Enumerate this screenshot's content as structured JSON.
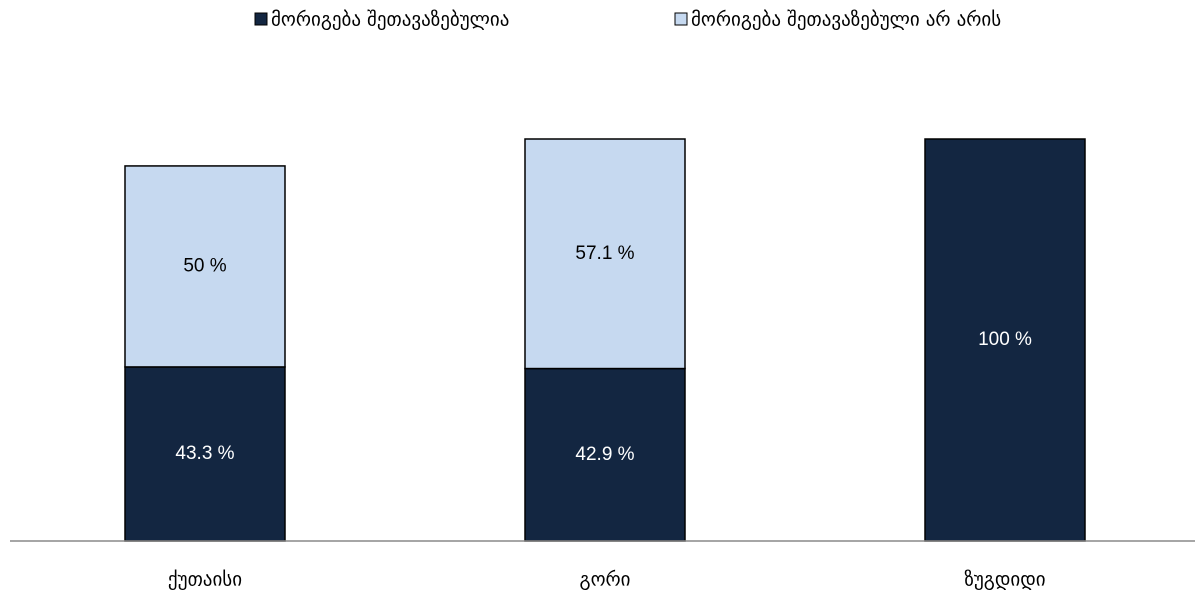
{
  "chart_data": {
    "type": "stacked_bar",
    "categories": [
      "ქუთაისი",
      "გორი",
      "ზუგდიდი"
    ],
    "series": [
      {
        "name": "მორიგება შეთავაზებულია",
        "color": "#132641",
        "values": [
          43.3,
          42.9,
          100
        ],
        "value_labels": [
          "43.3 %",
          "42.9 %",
          "100 %"
        ]
      },
      {
        "name": "მორიგება შეთავაზებული არ არის",
        "color": "#c6d9f0",
        "values": [
          50,
          57.1,
          0
        ],
        "value_labels": [
          "50 %",
          "57.1 %",
          null
        ]
      }
    ],
    "ylim": [
      0,
      100
    ],
    "legend": "top"
  }
}
